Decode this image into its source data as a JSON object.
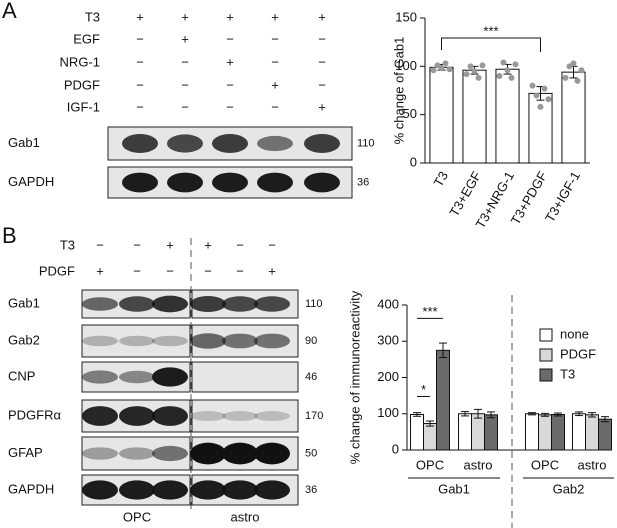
{
  "panels": [
    "A",
    "B"
  ],
  "blot_a": {
    "treatments": [
      {
        "label": "T3",
        "signs": [
          "+",
          "+",
          "+",
          "+",
          "+"
        ]
      },
      {
        "label": "EGF",
        "signs": [
          "−",
          "+",
          "−",
          "−",
          "−"
        ]
      },
      {
        "label": "NRG-1",
        "signs": [
          "−",
          "−",
          "+",
          "−",
          "−"
        ]
      },
      {
        "label": "PDGF",
        "signs": [
          "−",
          "−",
          "−",
          "+",
          "−"
        ]
      },
      {
        "label": "IGF-1",
        "signs": [
          "−",
          "−",
          "−",
          "−",
          "+"
        ]
      }
    ],
    "rows": [
      {
        "label": "Gab1",
        "mw": "110"
      },
      {
        "label": "GAPDH",
        "mw": "36"
      }
    ]
  },
  "blot_b": {
    "treatments": [
      {
        "label": "T3",
        "signs": [
          "−",
          "−",
          "+",
          "+",
          "−",
          "−"
        ]
      },
      {
        "label": "PDGF",
        "signs": [
          "+",
          "−",
          "−",
          "−",
          "−",
          "+"
        ]
      }
    ],
    "rows": [
      {
        "label": "Gab1",
        "mw": "110"
      },
      {
        "label": "Gab2",
        "mw": "90"
      },
      {
        "label": "CNP",
        "mw": "46"
      },
      {
        "label": "PDGFRα",
        "mw": "170"
      },
      {
        "label": "GFAP",
        "mw": "50"
      },
      {
        "label": "GAPDH",
        "mw": "36"
      }
    ],
    "groups": [
      "OPC",
      "astro"
    ]
  },
  "chart_data": [
    {
      "type": "bar",
      "ylabel": "% change of Gab1",
      "categories": [
        "T3",
        "T3+EGF",
        "T3+NRG-1",
        "T3+PDGF",
        "T3+IGF-1"
      ],
      "values": [
        99,
        96,
        97,
        72,
        94
      ],
      "errors": [
        3,
        4,
        5,
        7,
        6
      ],
      "points": [
        [
          96,
          101,
          98,
          103,
          97
        ],
        [
          92,
          100,
          95,
          88,
          101
        ],
        [
          90,
          104,
          96,
          88,
          102
        ],
        [
          80,
          70,
          58,
          77,
          66
        ],
        [
          88,
          100,
          103,
          85,
          96
        ]
      ],
      "color": "#ffffff",
      "ylim": [
        0,
        150
      ],
      "yticks": [
        0,
        50,
        100,
        150
      ],
      "annotations": [
        "***"
      ]
    },
    {
      "type": "grouped_bar",
      "ylabel": "% change of immunoreactivity",
      "categories": [
        "OPC",
        "astro",
        "OPC",
        "astro"
      ],
      "supergroups": [
        "Gab1",
        "Gab2"
      ],
      "series": [
        {
          "name": "none",
          "color": "#ffffff",
          "values": [
            98,
            100,
            100,
            100
          ],
          "errors": [
            5,
            6,
            3,
            5
          ]
        },
        {
          "name": "PDGF",
          "color": "#d9d9d9",
          "values": [
            73,
            100,
            97,
            97
          ],
          "errors": [
            7,
            12,
            4,
            6
          ]
        },
        {
          "name": "T3",
          "color": "#6b6b6b",
          "values": [
            275,
            97,
            98,
            85
          ],
          "errors": [
            20,
            8,
            4,
            7
          ]
        }
      ],
      "ylim": [
        0,
        400
      ],
      "yticks": [
        0,
        100,
        200,
        300,
        400
      ],
      "annotations": [
        "*",
        "***"
      ]
    }
  ]
}
